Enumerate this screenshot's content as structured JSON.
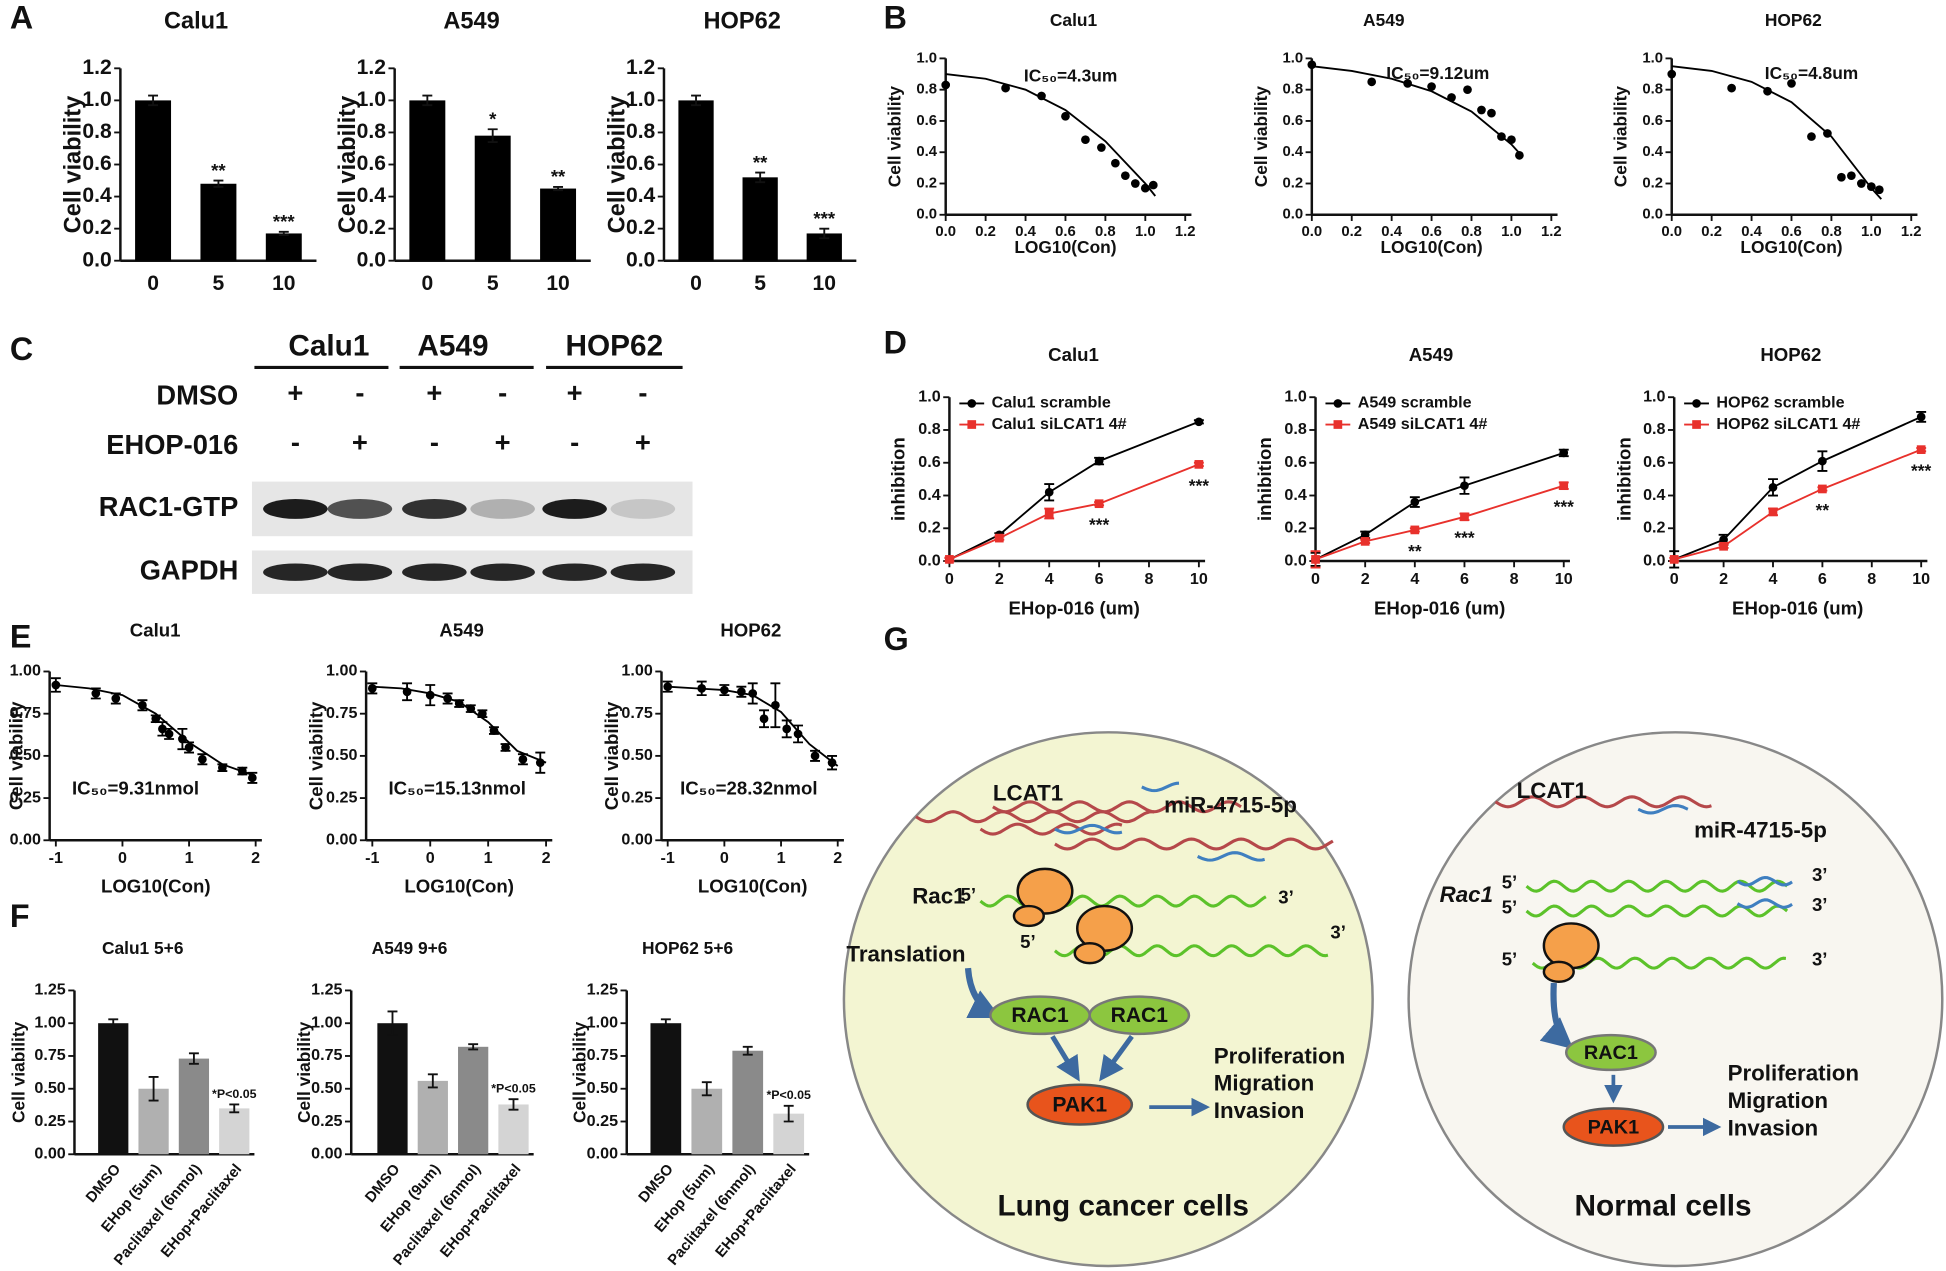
{
  "chart_data": [
    {
      "panel": "A",
      "type": "bar",
      "title": "Calu1",
      "ylabel": "Cell viability",
      "categories": [
        "0",
        "5",
        "10"
      ],
      "values": [
        1.0,
        0.48,
        0.17
      ],
      "errors": [
        0.03,
        0.02,
        0.01
      ],
      "annotations": [
        null,
        "**",
        "***"
      ],
      "color": "#000000",
      "ylim": [
        0,
        1.2
      ],
      "yticks": [
        {
          "value": 0,
          "label": "0.0"
        },
        0.2,
        0.4,
        0.6,
        0.8,
        {
          "value": 1,
          "label": "1.0"
        },
        1.2
      ]
    },
    {
      "type": "bar",
      "title": "A549",
      "ylabel": "Cell viability",
      "categories": [
        "0",
        "5",
        "10"
      ],
      "values": [
        1.0,
        0.78,
        0.45
      ],
      "errors": [
        0.03,
        0.04,
        0.01
      ],
      "annotations": [
        null,
        "*",
        "**"
      ],
      "color": "#000000",
      "ylim": [
        0,
        1.2
      ],
      "yticks": [
        {
          "value": 0,
          "label": "0.0"
        },
        0.2,
        0.4,
        0.6,
        0.8,
        {
          "value": 1,
          "label": "1.0"
        },
        1.2
      ]
    },
    {
      "type": "bar",
      "title": "HOP62",
      "ylabel": "Cell viability",
      "categories": [
        "0",
        "5",
        "10"
      ],
      "values": [
        1.0,
        0.52,
        0.17
      ],
      "errors": [
        0.03,
        0.03,
        0.03
      ],
      "annotations": [
        null,
        "**",
        "***"
      ],
      "color": "#000000",
      "ylim": [
        0,
        1.2
      ],
      "yticks": [
        {
          "value": 0,
          "label": "0.0"
        },
        0.2,
        0.4,
        0.6,
        0.8,
        {
          "value": 1,
          "label": "1.0"
        },
        1.2
      ]
    },
    {
      "panel": "B",
      "type": "scatter",
      "title": "Calu1",
      "xlabel": "LOG10(Con)",
      "ylabel": "Cell viability",
      "annotation": "IC₅₀=4.3um",
      "x": [
        0,
        0.3,
        0.48,
        0.6,
        0.7,
        0.78,
        0.85,
        0.9,
        0.95,
        1.0,
        1.04
      ],
      "y": [
        0.83,
        0.81,
        0.76,
        0.63,
        0.48,
        0.43,
        0.33,
        0.25,
        0.2,
        0.17,
        0.19
      ],
      "fit": {
        "x": [
          0,
          0.2,
          0.4,
          0.6,
          0.8,
          1.0,
          1.05
        ],
        "y": [
          0.9,
          0.87,
          0.8,
          0.67,
          0.47,
          0.2,
          0.12
        ]
      },
      "color": "#000000",
      "xlim": [
        0,
        1.2
      ],
      "xticks": [
        {
          "value": 0,
          "label": "0.0"
        },
        0.2,
        0.4,
        0.6,
        0.8,
        {
          "value": 1,
          "label": "1.0"
        },
        1.2
      ],
      "ylim": [
        0,
        1
      ],
      "yticks": [
        {
          "value": 0,
          "label": "0.0"
        },
        0.2,
        0.4,
        0.6,
        0.8,
        {
          "value": 1,
          "label": "1.0"
        }
      ]
    },
    {
      "type": "scatter",
      "title": "A549",
      "xlabel": "LOG10(Con)",
      "ylabel": "Cell viability",
      "annotation": "IC₅₀=9.12um",
      "x": [
        0,
        0.3,
        0.48,
        0.6,
        0.7,
        0.78,
        0.85,
        0.9,
        0.95,
        1.0,
        1.04
      ],
      "y": [
        0.96,
        0.85,
        0.84,
        0.82,
        0.75,
        0.8,
        0.67,
        0.65,
        0.5,
        0.48,
        0.38
      ],
      "fit": {
        "x": [
          0,
          0.2,
          0.4,
          0.6,
          0.8,
          1.0,
          1.05
        ],
        "y": [
          0.95,
          0.92,
          0.87,
          0.79,
          0.66,
          0.45,
          0.38
        ]
      },
      "color": "#000000",
      "xlim": [
        0,
        1.2
      ],
      "xticks": [
        {
          "value": 0,
          "label": "0.0"
        },
        0.2,
        0.4,
        0.6,
        0.8,
        {
          "value": 1,
          "label": "1.0"
        },
        1.2
      ],
      "ylim": [
        0,
        1
      ],
      "yticks": [
        {
          "value": 0,
          "label": "0.0"
        },
        0.2,
        0.4,
        0.6,
        0.8,
        {
          "value": 1,
          "label": "1.0"
        }
      ]
    },
    {
      "type": "scatter",
      "title": "HOP62",
      "xlabel": "LOG10(Con)",
      "ylabel": "Cell viability",
      "annotation": "IC₅₀=4.8um",
      "x": [
        0,
        0.3,
        0.48,
        0.6,
        0.7,
        0.78,
        0.85,
        0.9,
        0.95,
        1.0,
        1.04
      ],
      "y": [
        0.9,
        0.81,
        0.79,
        0.84,
        0.5,
        0.52,
        0.24,
        0.25,
        0.2,
        0.18,
        0.16
      ],
      "fit": {
        "x": [
          0,
          0.2,
          0.4,
          0.6,
          0.8,
          1.0,
          1.05
        ],
        "y": [
          0.95,
          0.92,
          0.85,
          0.72,
          0.5,
          0.17,
          0.1
        ]
      },
      "color": "#000000",
      "xlim": [
        0,
        1.2
      ],
      "xticks": [
        {
          "value": 0,
          "label": "0.0"
        },
        0.2,
        0.4,
        0.6,
        0.8,
        {
          "value": 1,
          "label": "1.0"
        },
        1.2
      ],
      "ylim": [
        0,
        1
      ],
      "yticks": [
        {
          "value": 0,
          "label": "0.0"
        },
        0.2,
        0.4,
        0.6,
        0.8,
        {
          "value": 1,
          "label": "1.0"
        }
      ]
    },
    {
      "panel": "D",
      "type": "line",
      "title": "Calu1",
      "xlabel": "EHop-016 (um)",
      "ylabel": "inhibition",
      "legend": "upper left",
      "x": [
        0,
        2,
        4,
        6,
        10
      ],
      "series": [
        {
          "name": "Calu1 scramble",
          "color": "#000000",
          "marker": "circle",
          "values": [
            0.01,
            0.16,
            0.42,
            0.61,
            0.85
          ],
          "errors": [
            0.01,
            0.01,
            0.05,
            0.02,
            0.01
          ]
        },
        {
          "name": "Calu1 siLCAT1 4#",
          "color": "#e8312c",
          "marker": "square",
          "values": [
            0.01,
            0.14,
            0.29,
            0.35,
            0.59
          ],
          "errors": [
            0.01,
            0.01,
            0.03,
            0.01,
            0.01
          ],
          "annotations": [
            null,
            null,
            null,
            "***",
            "***"
          ]
        }
      ],
      "xlim": [
        0,
        10
      ],
      "xticks": [
        0,
        2,
        4,
        6,
        8,
        10
      ],
      "ylim": [
        0,
        1
      ],
      "yticks": [
        {
          "value": 0,
          "label": "0.0"
        },
        0.2,
        0.4,
        0.6,
        0.8,
        {
          "value": 1,
          "label": "1.0"
        }
      ]
    },
    {
      "type": "line",
      "title": "A549",
      "xlabel": "EHop-016 (um)",
      "ylabel": "inhibition",
      "legend": "upper left",
      "x": [
        0,
        2,
        4,
        6,
        10
      ],
      "series": [
        {
          "name": "A549 scramble",
          "color": "#000000",
          "marker": "circle",
          "values": [
            0.01,
            0.16,
            0.36,
            0.46,
            0.66
          ],
          "errors": [
            0.04,
            0.02,
            0.03,
            0.05,
            0.02
          ]
        },
        {
          "name": "A549 siLCAT1 4#",
          "color": "#e8312c",
          "marker": "square",
          "values": [
            0.01,
            0.12,
            0.19,
            0.27,
            0.46
          ],
          "errors": [
            0.05,
            0.01,
            0.01,
            0.02,
            0.02
          ],
          "annotations": [
            null,
            null,
            "**",
            "***",
            "***"
          ]
        }
      ],
      "xlim": [
        0,
        10
      ],
      "xticks": [
        0,
        2,
        4,
        6,
        8,
        10
      ],
      "ylim": [
        0,
        1
      ],
      "yticks": [
        {
          "value": 0,
          "label": "0.0"
        },
        0.2,
        0.4,
        0.6,
        0.8,
        {
          "value": 1,
          "label": "1.0"
        }
      ]
    },
    {
      "type": "line",
      "title": "HOP62",
      "xlabel": "EHop-016 (um)",
      "ylabel": "inhibition",
      "legend": "upper left",
      "x": [
        0,
        2,
        4,
        6,
        10
      ],
      "series": [
        {
          "name": "HOP62 scramble",
          "color": "#000000",
          "marker": "circle",
          "values": [
            0.01,
            0.13,
            0.45,
            0.61,
            0.88
          ],
          "errors": [
            0.05,
            0.03,
            0.05,
            0.06,
            0.03
          ]
        },
        {
          "name": "HOP62 siLCAT1 4#",
          "color": "#e8312c",
          "marker": "square",
          "values": [
            0.01,
            0.09,
            0.3,
            0.44,
            0.68
          ],
          "errors": [
            0.01,
            0.01,
            0.02,
            0.01,
            0.01
          ],
          "annotations": [
            null,
            null,
            null,
            "**",
            "***"
          ]
        }
      ],
      "xlim": [
        0,
        10
      ],
      "xticks": [
        0,
        2,
        4,
        6,
        8,
        10
      ],
      "ylim": [
        0,
        1
      ],
      "yticks": [
        {
          "value": 0,
          "label": "0.0"
        },
        0.2,
        0.4,
        0.6,
        0.8,
        {
          "value": 1,
          "label": "1.0"
        }
      ]
    },
    {
      "panel": "E",
      "type": "scatter",
      "title": "Calu1",
      "xlabel": "LOG10(Con)",
      "ylabel": "Cell viability",
      "annotation": "IC₅₀=9.31nmol",
      "x": [
        -1,
        -0.4,
        -0.1,
        0.3,
        0.5,
        0.6,
        0.7,
        0.9,
        1.0,
        1.2,
        1.5,
        1.8,
        1.95
      ],
      "y": [
        0.92,
        0.87,
        0.84,
        0.8,
        0.72,
        0.66,
        0.63,
        0.6,
        0.55,
        0.48,
        0.43,
        0.41,
        0.37
      ],
      "errors": [
        0.04,
        0.03,
        0.03,
        0.03,
        0.02,
        0.04,
        0.03,
        0.06,
        0.03,
        0.03,
        0.02,
        0.02,
        0.03
      ],
      "fit": {
        "x": [
          -1,
          -0.5,
          0,
          0.5,
          1,
          1.5,
          2
        ],
        "y": [
          0.92,
          0.9,
          0.86,
          0.75,
          0.58,
          0.45,
          0.38
        ]
      },
      "color": "#000000",
      "xlim": [
        -1,
        2
      ],
      "xticks": [
        -1,
        0,
        1,
        2
      ],
      "ylim": [
        0,
        1
      ],
      "yticks": [
        {
          "value": 0,
          "label": "0.00"
        },
        0.25,
        {
          "value": 0.5,
          "label": "0.50"
        },
        0.75,
        {
          "value": 1,
          "label": "1.00"
        }
      ]
    },
    {
      "type": "scatter",
      "title": "A549",
      "xlabel": "LOG10(Con)",
      "ylabel": "Cell viability",
      "annotation": "IC₅₀=15.13nmol",
      "x": [
        -1,
        -0.4,
        0,
        0.3,
        0.5,
        0.7,
        0.9,
        1.1,
        1.3,
        1.6,
        1.9
      ],
      "y": [
        0.9,
        0.88,
        0.86,
        0.84,
        0.81,
        0.78,
        0.75,
        0.65,
        0.55,
        0.48,
        0.46
      ],
      "errors": [
        0.03,
        0.05,
        0.06,
        0.03,
        0.02,
        0.02,
        0.02,
        0.02,
        0.02,
        0.03,
        0.06
      ],
      "fit": {
        "x": [
          -1,
          -0.5,
          0,
          0.5,
          1,
          1.5,
          2
        ],
        "y": [
          0.91,
          0.9,
          0.87,
          0.82,
          0.7,
          0.53,
          0.46
        ]
      },
      "color": "#000000",
      "xlim": [
        -1,
        2
      ],
      "xticks": [
        -1,
        0,
        1,
        2
      ],
      "ylim": [
        0,
        1
      ],
      "yticks": [
        {
          "value": 0,
          "label": "0.00"
        },
        0.25,
        {
          "value": 0.5,
          "label": "0.50"
        },
        0.75,
        {
          "value": 1,
          "label": "1.00"
        }
      ]
    },
    {
      "type": "scatter",
      "title": "HOP62",
      "xlabel": "LOG10(Con)",
      "ylabel": "Cell viability",
      "annotation": "IC₅₀=28.32nmol",
      "x": [
        -1,
        -0.4,
        0,
        0.3,
        0.5,
        0.7,
        0.9,
        1.1,
        1.3,
        1.6,
        1.9
      ],
      "y": [
        0.91,
        0.9,
        0.89,
        0.88,
        0.87,
        0.72,
        0.8,
        0.66,
        0.63,
        0.5,
        0.46
      ],
      "errors": [
        0.03,
        0.04,
        0.03,
        0.03,
        0.06,
        0.05,
        0.13,
        0.05,
        0.05,
        0.03,
        0.04
      ],
      "fit": {
        "x": [
          -1,
          -0.5,
          0,
          0.5,
          1,
          1.5,
          2
        ],
        "y": [
          0.91,
          0.9,
          0.89,
          0.86,
          0.76,
          0.57,
          0.44
        ]
      },
      "color": "#000000",
      "xlim": [
        -1,
        2
      ],
      "xticks": [
        -1,
        0,
        1,
        2
      ],
      "ylim": [
        0,
        1
      ],
      "yticks": [
        {
          "value": 0,
          "label": "0.00"
        },
        0.25,
        {
          "value": 0.5,
          "label": "0.50"
        },
        0.75,
        {
          "value": 1,
          "label": "1.00"
        }
      ]
    },
    {
      "panel": "F",
      "type": "bar",
      "title": "Calu1 5+6",
      "ylabel": "Cell viability",
      "categories": [
        "DMSO",
        "EHop (5um)",
        "Paclitaxel (6nmol)",
        "EHop+Paclitaxel"
      ],
      "values": [
        1.0,
        0.5,
        0.73,
        0.35
      ],
      "errors": [
        0.03,
        0.09,
        0.04,
        0.03
      ],
      "annotations": [
        null,
        null,
        null,
        "*P<0.05"
      ],
      "colors": [
        "#111111",
        "#b0b0b0",
        "#8a8a8a",
        "#d4d4d4"
      ],
      "ylim": [
        0,
        1.25
      ],
      "yticks": [
        {
          "value": 0,
          "label": "0.00"
        },
        0.25,
        {
          "value": 0.5,
          "label": "0.50"
        },
        0.75,
        {
          "value": 1,
          "label": "1.00"
        },
        1.25
      ]
    },
    {
      "type": "bar",
      "title": "A549 9+6",
      "ylabel": "Cell viability",
      "categories": [
        "DMSO",
        "EHop (9um)",
        "Paclitaxel (6nmol)",
        "EHop+Paclitaxel"
      ],
      "values": [
        1.0,
        0.56,
        0.82,
        0.38
      ],
      "errors": [
        0.09,
        0.05,
        0.02,
        0.04
      ],
      "annotations": [
        null,
        null,
        null,
        "*P<0.05"
      ],
      "colors": [
        "#111111",
        "#b0b0b0",
        "#8a8a8a",
        "#d4d4d4"
      ],
      "ylim": [
        0,
        1.25
      ],
      "yticks": [
        {
          "value": 0,
          "label": "0.00"
        },
        0.25,
        {
          "value": 0.5,
          "label": "0.50"
        },
        0.75,
        {
          "value": 1,
          "label": "1.00"
        },
        1.25
      ]
    },
    {
      "type": "bar",
      "title": "HOP62 5+6",
      "ylabel": "Cell viability",
      "categories": [
        "DMSO",
        "EHop (5um)",
        "Paclitaxel (6nmol)",
        "EHop+Paclitaxel"
      ],
      "values": [
        1.0,
        0.5,
        0.79,
        0.31
      ],
      "errors": [
        0.03,
        0.05,
        0.03,
        0.06
      ],
      "annotations": [
        null,
        null,
        null,
        "*P<0.05"
      ],
      "colors": [
        "#111111",
        "#b0b0b0",
        "#8a8a8a",
        "#d4d4d4"
      ],
      "ylim": [
        0,
        1.25
      ],
      "yticks": [
        {
          "value": 0,
          "label": "0.00"
        },
        0.25,
        {
          "value": 0.5,
          "label": "0.50"
        },
        0.75,
        {
          "value": 1,
          "label": "1.00"
        },
        1.25
      ]
    }
  ],
  "blot": {
    "panel": "C",
    "groups": [
      "Calu1",
      "A549",
      "HOP62"
    ],
    "treatments": [
      {
        "label": "DMSO",
        "signs": [
          "+",
          "-",
          "+",
          "-",
          "+",
          "-"
        ]
      },
      {
        "label": "EHOP-016",
        "signs": [
          "-",
          "+",
          "-",
          "+",
          "-",
          "+"
        ]
      }
    ],
    "bands": [
      "RAC1-GTP",
      "GAPDH"
    ]
  },
  "diagram": {
    "panel": "G",
    "lung": {
      "lncrna": "LCAT1",
      "mirna": "miR-4715-5p",
      "gene": "Rac1",
      "five": "5’",
      "three": "3’",
      "translation": "Translation",
      "protein": "RAC1",
      "kinase": "PAK1",
      "outcomes": [
        "Proliferation",
        "Migration",
        "Invasion"
      ],
      "caption": "Lung cancer cells"
    },
    "normal": {
      "lncrna": "LCAT1",
      "mirna": "miR-4715-5p",
      "gene": "Rac1",
      "five": "5’",
      "three": "3’",
      "protein": "RAC1",
      "kinase": "PAK1",
      "outcomes": [
        "Proliferation",
        "Migration",
        "Invasion"
      ],
      "caption": "Normal cells"
    }
  }
}
